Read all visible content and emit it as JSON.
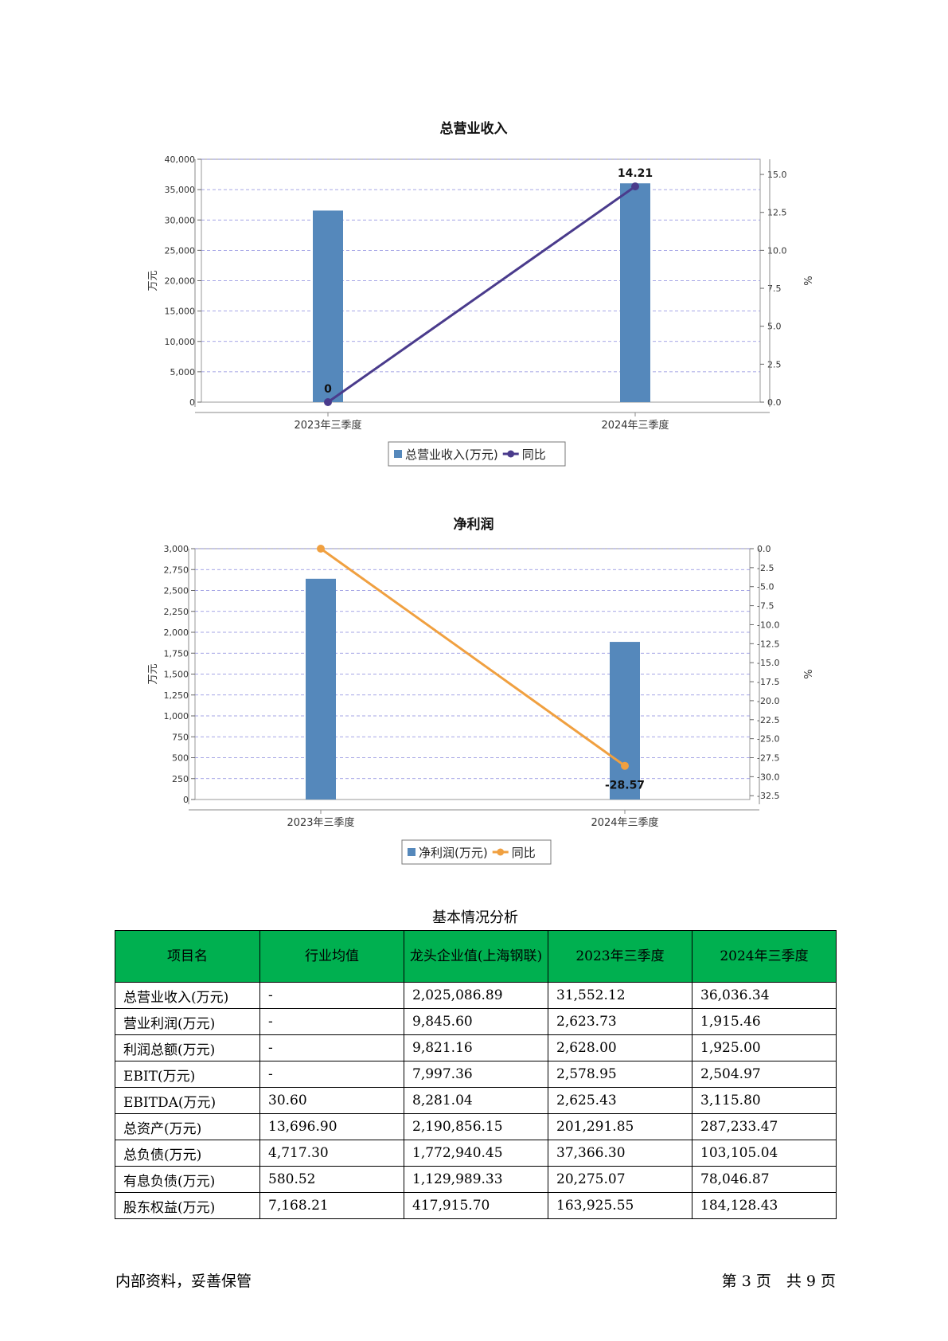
{
  "chart_data": [
    {
      "type": "bar",
      "title": "总营业收入",
      "categories": [
        "2023年三季度",
        "2024年三季度"
      ],
      "series": [
        {
          "name": "总营业收入(万元)",
          "type": "bar",
          "axis": "left",
          "values": [
            31552.12,
            36036.34
          ],
          "color": "#5588bb"
        },
        {
          "name": "同比",
          "type": "line",
          "axis": "right",
          "values": [
            0,
            14.21
          ],
          "color": "#4a3b8c"
        }
      ],
      "data_labels": [
        "0",
        "14.21"
      ],
      "ylabel": "万元",
      "y2label": "%",
      "ylim": [
        0,
        40000
      ],
      "y2lim": [
        0,
        16
      ],
      "yticks": [
        "0",
        "5,000",
        "10,000",
        "15,000",
        "20,000",
        "25,000",
        "30,000",
        "35,000",
        "40,000"
      ],
      "y2ticks": [
        "0.0",
        "2.5",
        "5.0",
        "7.5",
        "10.0",
        "12.5",
        "15.0"
      ],
      "grid": true,
      "legend": "bottom"
    },
    {
      "type": "bar",
      "title": "净利润",
      "categories": [
        "2023年三季度",
        "2024年三季度"
      ],
      "series": [
        {
          "name": "净利润(万元)",
          "type": "bar",
          "axis": "left",
          "values": [
            2640,
            1885
          ],
          "color": "#5588bb"
        },
        {
          "name": "同比",
          "type": "line",
          "axis": "right",
          "values": [
            0,
            -28.57
          ],
          "color": "#f0a040"
        }
      ],
      "data_labels": [
        "",
        "-28.57"
      ],
      "ylabel": "万元",
      "y2label": "%",
      "ylim": [
        0,
        3000
      ],
      "y2lim": [
        -33,
        0
      ],
      "yticks": [
        "0",
        "250",
        "500",
        "750",
        "1,000",
        "1,250",
        "1,500",
        "1,750",
        "2,000",
        "2,250",
        "2,500",
        "2,750",
        "3,000"
      ],
      "y2ticks": [
        "0.0",
        "-2.5",
        "-5.0",
        "-7.5",
        "-10.0",
        "-12.5",
        "-15.0",
        "-17.5",
        "-20.0",
        "-22.5",
        "-25.0",
        "-27.5",
        "-30.0",
        "-32.5"
      ],
      "grid": true,
      "legend": "bottom"
    }
  ],
  "table": {
    "caption": "基本情况分析",
    "header_color": "#00b050",
    "headers": [
      "项目名",
      "行业均值",
      "龙头企业值(上海钢联)",
      "2023年三季度",
      "2024年三季度"
    ],
    "rows": [
      [
        "总营业收入(万元)",
        "-",
        "2,025,086.89",
        "31,552.12",
        "36,036.34"
      ],
      [
        "营业利润(万元)",
        "-",
        "9,845.60",
        "2,623.73",
        "1,915.46"
      ],
      [
        "利润总额(万元)",
        "-",
        "9,821.16",
        "2,628.00",
        "1,925.00"
      ],
      [
        "EBIT(万元)",
        "-",
        "7,997.36",
        "2,578.95",
        "2,504.97"
      ],
      [
        "EBITDA(万元)",
        "30.60",
        "8,281.04",
        "2,625.43",
        "3,115.80"
      ],
      [
        "总资产(万元)",
        "13,696.90",
        "2,190,856.15",
        "201,291.85",
        "287,233.47"
      ],
      [
        "总负债(万元)",
        "4,717.30",
        "1,772,940.45",
        "37,366.30",
        "103,105.04"
      ],
      [
        "有息负债(万元)",
        "580.52",
        "1,129,989.33",
        "20,275.07",
        "78,046.87"
      ],
      [
        "股东权益(万元)",
        "7,168.21",
        "417,915.70",
        "163,925.55",
        "184,128.43"
      ]
    ]
  },
  "footer": {
    "left": "内部资料，妥善保管",
    "right": "第 3 页　共 9 页"
  }
}
